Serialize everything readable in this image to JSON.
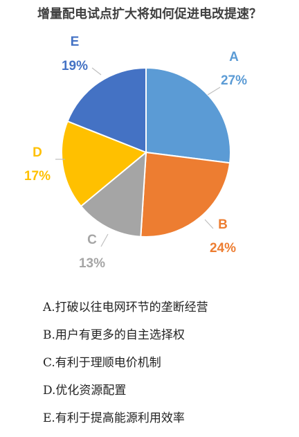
{
  "chart_data": {
    "type": "pie",
    "title": "增量配电试点扩大将如何促进电改提速？",
    "slices": [
      {
        "label": "A",
        "value": 27,
        "value_label": "27%",
        "color": "#5B9BD5"
      },
      {
        "label": "B",
        "value": 24,
        "value_label": "24%",
        "color": "#ED7D31"
      },
      {
        "label": "C",
        "value": 13,
        "value_label": "13%",
        "color": "#A5A5A5"
      },
      {
        "label": "D",
        "value": 17,
        "value_label": "17%",
        "color": "#FFC000"
      },
      {
        "label": "E",
        "value": 19,
        "value_label": "19%",
        "color": "#4472C4"
      }
    ],
    "start": "12 o'clock",
    "direction": "clockwise"
  },
  "options": [
    {
      "text": "A.打破以往电网环节的垄断经营"
    },
    {
      "text": "B.用户有更多的自主选择权"
    },
    {
      "text": "C.有利于理顺电价机制"
    },
    {
      "text": "D.优化资源配置"
    },
    {
      "text": "E.有利于提高能源利用效率"
    }
  ]
}
